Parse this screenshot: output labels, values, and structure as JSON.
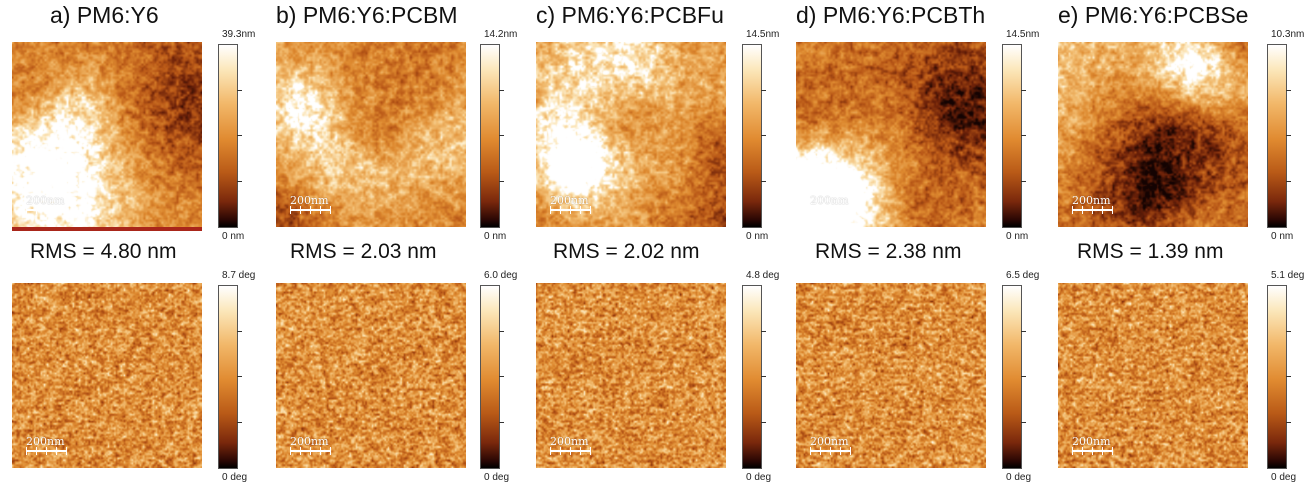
{
  "panels": [
    {
      "title": "a) PM6:Y6",
      "rms": "RMS = 4.80 nm",
      "height_max": "39.3nm",
      "height_min": "0 nm",
      "phase_max": "8.7 deg",
      "phase_min": "0 deg",
      "scale": "200nm"
    },
    {
      "title": "b) PM6:Y6:PCBM",
      "rms": "RMS = 2.03 nm",
      "height_max": "14.2nm",
      "height_min": "0 nm",
      "phase_max": "6.0 deg",
      "phase_min": "0 deg",
      "scale": "200nm"
    },
    {
      "title": "c) PM6:Y6:PCBFu",
      "rms": "RMS = 2.02 nm",
      "height_max": "14.5nm",
      "height_min": "0 nm",
      "phase_max": "4.8 deg",
      "phase_min": "0 deg",
      "scale": "200nm"
    },
    {
      "title": "d) PM6:Y6:PCBTh",
      "rms": "RMS = 2.38 nm",
      "height_max": "14.5nm",
      "height_min": "0 nm",
      "phase_max": "6.5 deg",
      "phase_min": "0 deg",
      "scale": "200nm"
    },
    {
      "title": "e) PM6:Y6:PCBSe",
      "rms": "RMS = 1.39 nm",
      "height_max": "10.3nm",
      "height_min": "0 nm",
      "phase_max": "5.1 deg",
      "phase_min": "0 deg",
      "scale": "200nm"
    }
  ],
  "colors": {
    "afm_light": "#f5c27a",
    "afm_mid": "#d27a2a",
    "afm_dark": "#6e2209"
  }
}
